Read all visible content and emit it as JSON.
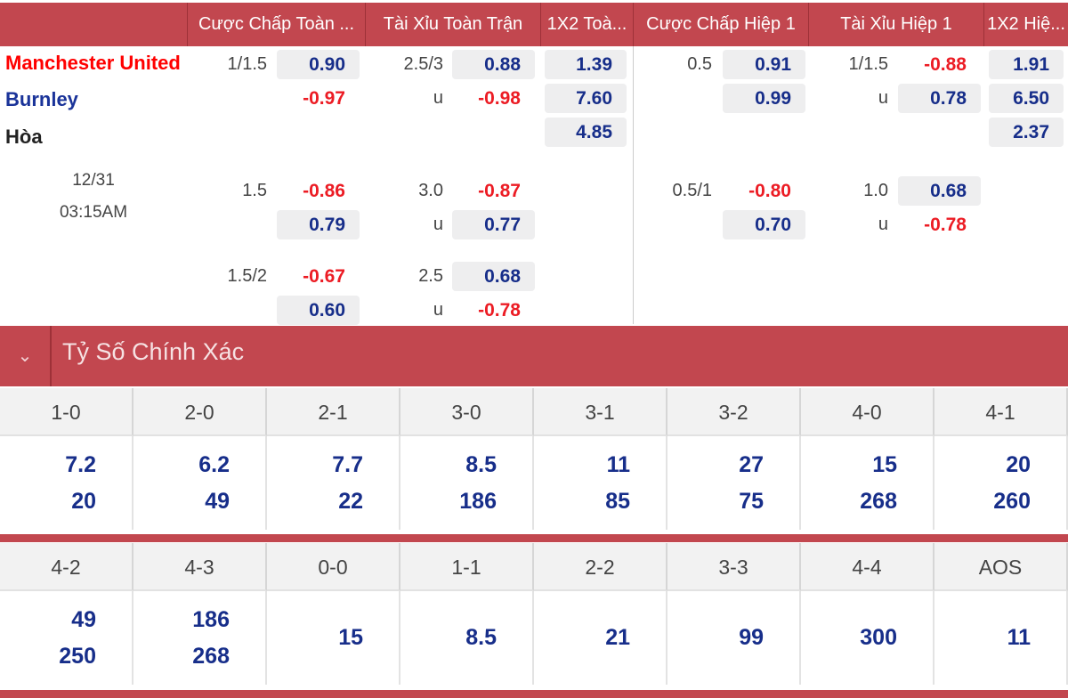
{
  "header": {
    "columns": [
      "Cược Chấp Toàn ...",
      "Tài Xỉu Toàn Trận",
      "1X2 Toà...",
      "Cược Chấp Hiệp 1",
      "Tài Xỉu Hiệp 1",
      "1X2 Hiệ..."
    ]
  },
  "match": {
    "home": "Manchester United",
    "away": "Burnley",
    "draw": "Hòa",
    "date": "12/31",
    "time": "03:15AM",
    "colors": {
      "home": "#ff0000",
      "away": "#1a3399",
      "draw": "#222222"
    }
  },
  "x12": {
    "full": [
      "1.39",
      "7.60",
      "4.85"
    ],
    "half": [
      "1.91",
      "6.50",
      "2.37"
    ]
  },
  "blocks": [
    {
      "ft_ah": {
        "line": "1/1.5",
        "a": "0.90",
        "b": "-0.97"
      },
      "ft_ou": {
        "line": "2.5/3",
        "u": "u",
        "a": "0.88",
        "b": "-0.98"
      },
      "h1_ah": {
        "line": "0.5",
        "a": "0.91",
        "b": "0.99"
      },
      "h1_ou": {
        "line": "1/1.5",
        "u": "u",
        "a": "-0.88",
        "b": "0.78"
      }
    },
    {
      "ft_ah": {
        "line": "1.5",
        "a": "-0.86",
        "b": "0.79"
      },
      "ft_ou": {
        "line": "3.0",
        "u": "u",
        "a": "-0.87",
        "b": "0.77"
      },
      "h1_ah": {
        "line": "0.5/1",
        "a": "-0.80",
        "b": "0.70"
      },
      "h1_ou": {
        "line": "1.0",
        "u": "u",
        "a": "0.68",
        "b": "-0.78"
      }
    },
    {
      "ft_ah": {
        "line": "1.5/2",
        "a": "-0.67",
        "b": "0.60"
      },
      "ft_ou": {
        "line": "2.5",
        "u": "u",
        "a": "0.68",
        "b": "-0.78"
      }
    }
  ],
  "correct_score": {
    "title": "Tỷ Số Chính Xác",
    "collapse_icon": "chevron-down-icon",
    "rows": [
      [
        {
          "score": "1-0",
          "v": [
            "7.2",
            "20"
          ]
        },
        {
          "score": "2-0",
          "v": [
            "6.2",
            "49"
          ]
        },
        {
          "score": "2-1",
          "v": [
            "7.7",
            "22"
          ]
        },
        {
          "score": "3-0",
          "v": [
            "8.5",
            "186"
          ]
        },
        {
          "score": "3-1",
          "v": [
            "11",
            "85"
          ]
        },
        {
          "score": "3-2",
          "v": [
            "27",
            "75"
          ]
        },
        {
          "score": "4-0",
          "v": [
            "15",
            "268"
          ]
        },
        {
          "score": "4-1",
          "v": [
            "20",
            "260"
          ]
        }
      ],
      [
        {
          "score": "4-2",
          "v": [
            "49",
            "250"
          ]
        },
        {
          "score": "4-3",
          "v": [
            "186",
            "268"
          ]
        },
        {
          "score": "0-0",
          "v": [
            "15"
          ]
        },
        {
          "score": "1-1",
          "v": [
            "8.5"
          ]
        },
        {
          "score": "2-2",
          "v": [
            "21"
          ]
        },
        {
          "score": "3-3",
          "v": [
            "99"
          ]
        },
        {
          "score": "4-4",
          "v": [
            "300"
          ]
        },
        {
          "score": "AOS",
          "v": [
            "11"
          ]
        }
      ]
    ]
  }
}
